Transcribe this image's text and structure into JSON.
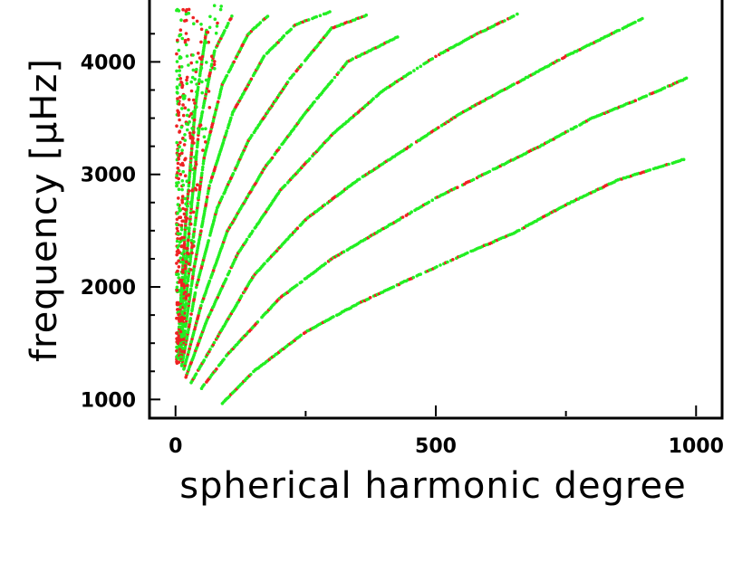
{
  "chart_data": {
    "type": "scatter",
    "title": "",
    "xlabel": "spherical harmonic degree",
    "ylabel": "frequency [μHz]",
    "xlim": [
      -50,
      1050
    ],
    "ylim": [
      850,
      4550
    ],
    "x_ticks": [
      {
        "value": 0,
        "label": "0"
      },
      {
        "value": 500,
        "label": "500"
      },
      {
        "value": 1000,
        "label": "1000"
      }
    ],
    "x_minor_ticks": [
      250,
      750
    ],
    "y_ticks": [
      {
        "value": 1000,
        "label": "1000"
      },
      {
        "value": 2000,
        "label": "2000"
      },
      {
        "value": 3000,
        "label": "3000"
      },
      {
        "value": 4000,
        "label": "4000"
      }
    ],
    "y_minor_ticks": [
      1250,
      1500,
      1750,
      2250,
      2500,
      2750,
      3250,
      3500,
      3750,
      4250
    ],
    "grid": false,
    "legend": "none",
    "colors": {
      "red_series": "#ee2222",
      "green_series": "#22ee22"
    },
    "ridges": [
      {
        "order": 0,
        "points": [
          [
            90,
            965
          ],
          [
            150,
            1250
          ],
          [
            250,
            1600
          ],
          [
            350,
            1850
          ],
          [
            450,
            2070
          ],
          [
            550,
            2280
          ],
          [
            650,
            2480
          ],
          [
            750,
            2730
          ],
          [
            850,
            2950
          ],
          [
            980,
            3140
          ]
        ]
      },
      {
        "order": 1,
        "points": [
          [
            50,
            1100
          ],
          [
            100,
            1400
          ],
          [
            200,
            1900
          ],
          [
            300,
            2250
          ],
          [
            400,
            2520
          ],
          [
            500,
            2790
          ],
          [
            600,
            3020
          ],
          [
            700,
            3250
          ],
          [
            800,
            3500
          ],
          [
            880,
            3650
          ],
          [
            985,
            3860
          ]
        ]
      },
      {
        "order": 2,
        "points": [
          [
            30,
            1150
          ],
          [
            80,
            1550
          ],
          [
            150,
            2100
          ],
          [
            250,
            2600
          ],
          [
            350,
            2950
          ],
          [
            450,
            3250
          ],
          [
            550,
            3550
          ],
          [
            650,
            3800
          ],
          [
            750,
            4050
          ],
          [
            900,
            4390
          ]
        ]
      },
      {
        "order": 3,
        "points": [
          [
            20,
            1200
          ],
          [
            60,
            1700
          ],
          [
            120,
            2300
          ],
          [
            200,
            2850
          ],
          [
            300,
            3350
          ],
          [
            400,
            3750
          ],
          [
            500,
            4050
          ],
          [
            580,
            4250
          ],
          [
            660,
            4430
          ]
        ]
      },
      {
        "order": 4,
        "points": [
          [
            15,
            1250
          ],
          [
            50,
            1850
          ],
          [
            100,
            2500
          ],
          [
            170,
            3050
          ],
          [
            250,
            3550
          ],
          [
            330,
            4000
          ],
          [
            430,
            4230
          ]
        ]
      },
      {
        "order": 5,
        "points": [
          [
            12,
            1300
          ],
          [
            40,
            2000
          ],
          [
            80,
            2700
          ],
          [
            140,
            3300
          ],
          [
            220,
            3850
          ],
          [
            300,
            4300
          ],
          [
            370,
            4420
          ]
        ]
      },
      {
        "order": 6,
        "points": [
          [
            10,
            1350
          ],
          [
            35,
            2150
          ],
          [
            65,
            2900
          ],
          [
            110,
            3550
          ],
          [
            170,
            4050
          ],
          [
            230,
            4330
          ],
          [
            300,
            4450
          ]
        ]
      },
      {
        "order": 7,
        "points": [
          [
            8,
            1400
          ],
          [
            30,
            2300
          ],
          [
            55,
            3150
          ],
          [
            90,
            3800
          ],
          [
            140,
            4250
          ],
          [
            180,
            4420
          ]
        ]
      },
      {
        "order": 8,
        "points": [
          [
            6,
            1450
          ],
          [
            25,
            2450
          ],
          [
            45,
            3400
          ],
          [
            75,
            4100
          ],
          [
            110,
            4420
          ]
        ]
      },
      {
        "order": 9,
        "points": [
          [
            5,
            1500
          ],
          [
            20,
            2600
          ],
          [
            38,
            3600
          ],
          [
            60,
            4300
          ]
        ]
      }
    ],
    "low_degree_cluster": {
      "x_range": [
        2,
        120
      ],
      "y_range": [
        1300,
        4500
      ]
    }
  }
}
